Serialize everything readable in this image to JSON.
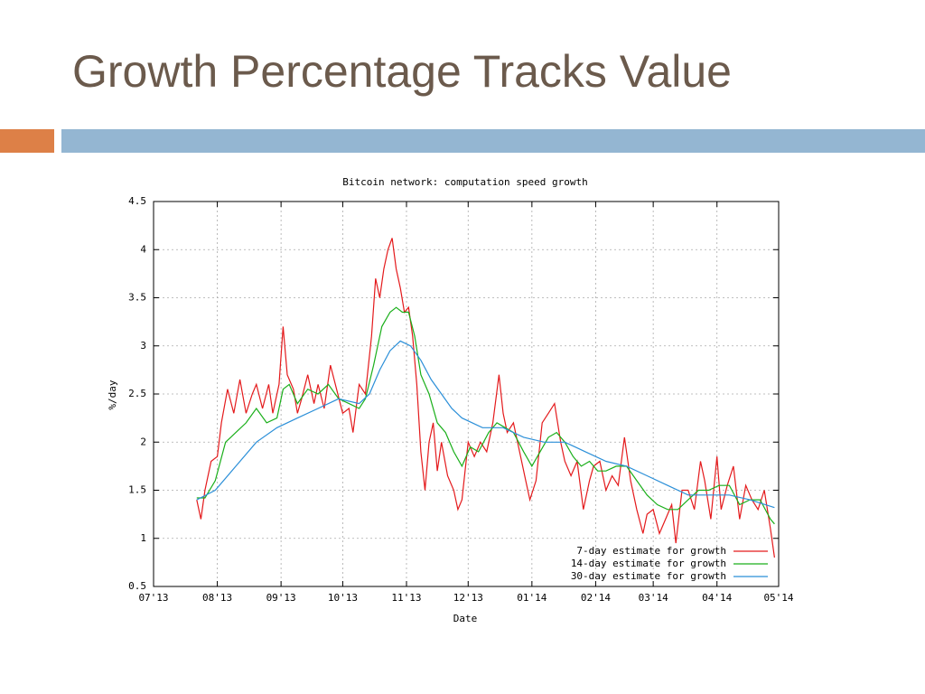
{
  "title": "Growth Percentage Tracks Value",
  "chart_data": {
    "type": "line",
    "title": "Bitcoin network: computation speed growth",
    "x_label": "Date",
    "y_label": "%/day",
    "xlim": [
      0,
      304
    ],
    "xticks": [
      {
        "value": 0,
        "label": "07'13"
      },
      {
        "value": 31,
        "label": "08'13"
      },
      {
        "value": 62,
        "label": "09'13"
      },
      {
        "value": 92,
        "label": "10'13"
      },
      {
        "value": 123,
        "label": "11'13"
      },
      {
        "value": 153,
        "label": "12'13"
      },
      {
        "value": 184,
        "label": "01'14"
      },
      {
        "value": 215,
        "label": "02'14"
      },
      {
        "value": 243,
        "label": "03'14"
      },
      {
        "value": 274,
        "label": "04'14"
      },
      {
        "value": 304,
        "label": "05'14"
      }
    ],
    "ylim": [
      0.5,
      4.5
    ],
    "yticks": [
      0.5,
      1,
      1.5,
      2,
      2.5,
      3,
      3.5,
      4,
      4.5
    ],
    "grid": true,
    "legend": "bottom-right",
    "series": [
      {
        "name": "7-day estimate for growth",
        "color": "#e41a1c",
        "x": [
          21,
          23,
          25,
          28,
          31,
          33,
          36,
          39,
          42,
          45,
          48,
          50,
          53,
          56,
          58,
          61,
          63,
          65,
          68,
          70,
          72,
          75,
          78,
          80,
          83,
          86,
          89,
          92,
          95,
          97,
          100,
          103,
          106,
          108,
          110,
          112,
          114,
          116,
          118,
          120,
          122,
          124,
          126,
          128,
          130,
          132,
          134,
          136,
          138,
          140,
          143,
          146,
          148,
          150,
          153,
          156,
          159,
          162,
          165,
          168,
          170,
          172,
          175,
          178,
          181,
          183,
          186,
          189,
          192,
          195,
          198,
          200,
          203,
          206,
          209,
          212,
          214,
          217,
          220,
          223,
          226,
          229,
          232,
          235,
          238,
          240,
          243,
          246,
          249,
          252,
          254,
          257,
          260,
          263,
          266,
          268,
          271,
          274,
          276,
          279,
          282,
          285,
          288,
          291,
          294,
          297,
          300,
          302
        ],
        "values": [
          1.4,
          1.2,
          1.5,
          1.8,
          1.85,
          2.2,
          2.55,
          2.3,
          2.65,
          2.3,
          2.5,
          2.6,
          2.35,
          2.6,
          2.3,
          2.6,
          3.2,
          2.7,
          2.55,
          2.3,
          2.45,
          2.7,
          2.4,
          2.6,
          2.35,
          2.8,
          2.55,
          2.3,
          2.35,
          2.1,
          2.6,
          2.5,
          3.1,
          3.7,
          3.5,
          3.8,
          4.0,
          4.12,
          3.8,
          3.6,
          3.35,
          3.4,
          3.1,
          2.6,
          1.9,
          1.5,
          2.0,
          2.2,
          1.7,
          2.0,
          1.65,
          1.5,
          1.3,
          1.4,
          2.0,
          1.85,
          2.0,
          1.9,
          2.2,
          2.7,
          2.3,
          2.1,
          2.2,
          1.9,
          1.6,
          1.4,
          1.6,
          2.2,
          2.3,
          2.4,
          2.0,
          1.8,
          1.65,
          1.8,
          1.3,
          1.6,
          1.75,
          1.8,
          1.5,
          1.65,
          1.55,
          2.05,
          1.6,
          1.3,
          1.05,
          1.25,
          1.3,
          1.05,
          1.2,
          1.35,
          0.95,
          1.5,
          1.5,
          1.3,
          1.8,
          1.6,
          1.2,
          1.85,
          1.3,
          1.55,
          1.75,
          1.2,
          1.55,
          1.4,
          1.3,
          1.5,
          1.1,
          0.8
        ]
      },
      {
        "name": "14-day estimate for growth",
        "color": "#1aaf1a",
        "x": [
          21,
          25,
          30,
          35,
          40,
          45,
          50,
          55,
          60,
          63,
          66,
          70,
          75,
          80,
          85,
          90,
          95,
          100,
          103,
          107,
          111,
          115,
          118,
          121,
          124,
          127,
          130,
          134,
          138,
          142,
          146,
          150,
          154,
          158,
          163,
          167,
          171,
          175,
          180,
          184,
          188,
          192,
          196,
          200,
          204,
          208,
          212,
          216,
          220,
          225,
          230,
          235,
          240,
          245,
          250,
          255,
          260,
          265,
          270,
          275,
          280,
          285,
          290,
          295,
          300,
          302
        ],
        "values": [
          1.42,
          1.42,
          1.6,
          2.0,
          2.1,
          2.2,
          2.35,
          2.2,
          2.25,
          2.55,
          2.6,
          2.4,
          2.55,
          2.5,
          2.6,
          2.45,
          2.4,
          2.35,
          2.45,
          2.8,
          3.2,
          3.35,
          3.4,
          3.35,
          3.35,
          3.1,
          2.7,
          2.5,
          2.2,
          2.1,
          1.9,
          1.75,
          1.95,
          1.9,
          2.1,
          2.2,
          2.15,
          2.1,
          1.9,
          1.75,
          1.9,
          2.05,
          2.1,
          2.0,
          1.85,
          1.75,
          1.8,
          1.7,
          1.7,
          1.75,
          1.75,
          1.6,
          1.45,
          1.35,
          1.3,
          1.3,
          1.4,
          1.5,
          1.5,
          1.55,
          1.55,
          1.35,
          1.4,
          1.4,
          1.2,
          1.15
        ]
      },
      {
        "name": "30-day estimate for growth",
        "color": "#2b8fd8",
        "x": [
          21,
          30,
          40,
          50,
          60,
          70,
          80,
          90,
          100,
          105,
          110,
          115,
          120,
          125,
          130,
          135,
          140,
          145,
          150,
          160,
          170,
          180,
          190,
          200,
          210,
          220,
          230,
          240,
          250,
          260,
          270,
          280,
          290,
          302
        ],
        "values": [
          1.4,
          1.5,
          1.75,
          2.0,
          2.15,
          2.25,
          2.35,
          2.45,
          2.4,
          2.5,
          2.75,
          2.95,
          3.05,
          3.0,
          2.85,
          2.65,
          2.5,
          2.35,
          2.25,
          2.15,
          2.15,
          2.05,
          2.0,
          2.0,
          1.9,
          1.8,
          1.75,
          1.65,
          1.55,
          1.45,
          1.45,
          1.45,
          1.4,
          1.32
        ]
      }
    ]
  }
}
